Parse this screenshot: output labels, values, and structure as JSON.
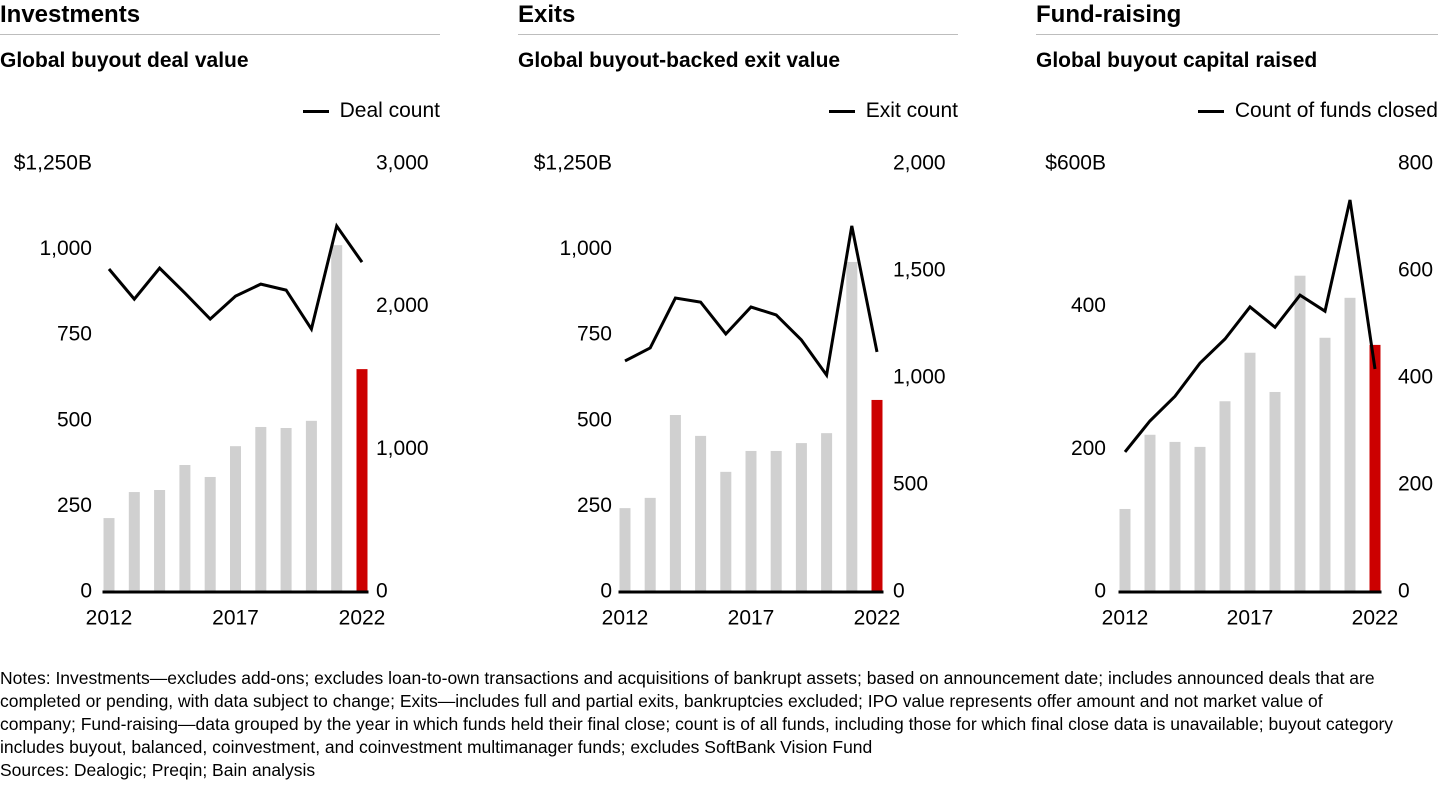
{
  "colors": {
    "bar": "#d0d0d0",
    "highlight_bar": "#cc0000",
    "line": "#000000",
    "rule": "#bdbdbd"
  },
  "chart_data": [
    {
      "type": "bar+line",
      "title": "Investments",
      "subtitle": "Global buyout deal value",
      "legend": "Deal count",
      "legend_placement": "top-right",
      "categories": [
        2012,
        2013,
        2014,
        2015,
        2016,
        2017,
        2018,
        2019,
        2020,
        2021,
        2022
      ],
      "x_tick_labels": [
        "2012",
        "2017",
        "2022"
      ],
      "bar_values": [
        213,
        289,
        295,
        368,
        333,
        423,
        479,
        476,
        497,
        1010,
        648
      ],
      "highlight_category": 2022,
      "line_values": [
        2257,
        2046,
        2263,
        2088,
        1906,
        2067,
        2151,
        2109,
        1836,
        2558,
        2305
      ],
      "left_axis": {
        "ylim": [
          0,
          1250
        ],
        "tick_labels": [
          "0",
          "250",
          "500",
          "750",
          "1,000",
          "$1,250B"
        ],
        "ticks": [
          0,
          250,
          500,
          750,
          1000,
          1250
        ]
      },
      "right_axis": {
        "ylim": [
          0,
          3000
        ],
        "tick_labels": [
          "0",
          "1,000",
          "2,000",
          "3,000"
        ],
        "ticks": [
          0,
          1000,
          2000,
          3000
        ]
      },
      "grid": false
    },
    {
      "type": "bar+line",
      "title": "Exits",
      "subtitle": "Global buyout-backed exit value",
      "legend": "Exit count",
      "legend_placement": "top-right",
      "categories": [
        2012,
        2013,
        2014,
        2015,
        2016,
        2017,
        2018,
        2019,
        2020,
        2021,
        2022
      ],
      "x_tick_labels": [
        "2012",
        "2017",
        "2022"
      ],
      "bar_values": [
        242,
        272,
        514,
        453,
        348,
        409,
        409,
        432,
        461,
        961,
        558
      ],
      "highlight_category": 2022,
      "line_values": [
        1075,
        1136,
        1369,
        1350,
        1201,
        1327,
        1290,
        1173,
        1009,
        1706,
        1117
      ],
      "left_axis": {
        "ylim": [
          0,
          1250
        ],
        "tick_labels": [
          "0",
          "250",
          "500",
          "750",
          "1,000",
          "$1,250B"
        ],
        "ticks": [
          0,
          250,
          500,
          750,
          1000,
          1250
        ]
      },
      "right_axis": {
        "ylim": [
          0,
          2000
        ],
        "tick_labels": [
          "0",
          "500",
          "1,000",
          "1,500",
          "2,000"
        ],
        "ticks": [
          0,
          500,
          1000,
          1500,
          2000
        ]
      },
      "grid": false
    },
    {
      "type": "bar+line",
      "title": "Fund-raising",
      "subtitle": "Global buyout capital raised",
      "legend": "Count of funds closed",
      "legend_placement": "top-right",
      "categories": [
        2012,
        2013,
        2014,
        2015,
        2016,
        2017,
        2018,
        2019,
        2020,
        2021,
        2022
      ],
      "x_tick_labels": [
        "2012",
        "2017",
        "2022"
      ],
      "bar_values": [
        115,
        219,
        209,
        202,
        266,
        334,
        279,
        442,
        355,
        411,
        345
      ],
      "highlight_category": 2022,
      "line_values": [
        260,
        318,
        364,
        426,
        471,
        531,
        493,
        553,
        523,
        731,
        415
      ],
      "left_axis": {
        "ylim": [
          0,
          600
        ],
        "tick_labels": [
          "0",
          "200",
          "400",
          "$600B"
        ],
        "ticks": [
          0,
          200,
          400,
          600
        ]
      },
      "right_axis": {
        "ylim": [
          0,
          800
        ],
        "tick_labels": [
          "0",
          "200",
          "400",
          "600",
          "800"
        ],
        "ticks": [
          0,
          200,
          400,
          600,
          800
        ]
      },
      "grid": false
    }
  ],
  "notes": "Notes: Investments—excludes add-ons; excludes loan-to-own transactions and acquisitions of bankrupt assets; based on announcement date; includes announced deals that are completed or pending, with data subject to change; Exits—includes full and partial exits, bankruptcies excluded; IPO value represents offer amount and not market value of company; Fund-raising—data grouped by the year in which funds held their final close; count is of all funds, including those for which final close data is unavailable; buyout category includes buyout, balanced, coinvestment, and coinvestment multimanager funds; excludes SoftBank Vision Fund",
  "sources": "Sources: Dealogic; Preqin; Bain analysis"
}
